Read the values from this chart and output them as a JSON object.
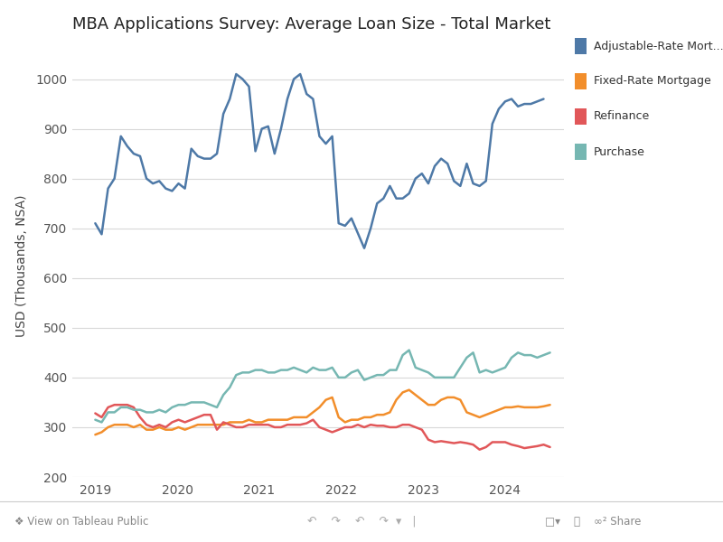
{
  "title": "MBA Applications Survey: Average Loan Size - Total Market",
  "ylabel": "USD (Thousands, NSA)",
  "background_color": "#ffffff",
  "plot_bg_color": "#ffffff",
  "grid_color": "#d8d8d8",
  "ylim": [
    200,
    1050
  ],
  "yticks": [
    200,
    300,
    400,
    500,
    600,
    700,
    800,
    900,
    1000
  ],
  "xtick_years": [
    2019,
    2020,
    2021,
    2022,
    2023,
    2024
  ],
  "xlim_start": 2018.72,
  "xlim_end": 2024.72,
  "n_points": 72,
  "start_year": 2019.0,
  "end_year": 2024.55,
  "series": [
    {
      "label": "Adjustable-Rate Mort...",
      "color": "#4e79a7",
      "linewidth": 1.8,
      "y": [
        710,
        688,
        780,
        800,
        885,
        865,
        850,
        845,
        800,
        790,
        795,
        780,
        775,
        790,
        780,
        860,
        845,
        840,
        840,
        850,
        930,
        960,
        1010,
        1000,
        985,
        855,
        900,
        905,
        850,
        900,
        960,
        1000,
        1010,
        970,
        960,
        885,
        870,
        885,
        710,
        705,
        720,
        690,
        660,
        700,
        750,
        760,
        785,
        760,
        760,
        770,
        800,
        810,
        790,
        825,
        840,
        830,
        795,
        785,
        830,
        790,
        785,
        795,
        910,
        940,
        955,
        960,
        945,
        950,
        950,
        955,
        960
      ]
    },
    {
      "label": "Fixed-Rate Mortgage",
      "color": "#f28e2b",
      "linewidth": 1.8,
      "y": [
        285,
        290,
        300,
        305,
        305,
        305,
        300,
        305,
        295,
        295,
        300,
        295,
        295,
        300,
        295,
        300,
        305,
        305,
        305,
        305,
        305,
        310,
        310,
        310,
        315,
        310,
        310,
        315,
        315,
        315,
        315,
        320,
        320,
        320,
        330,
        340,
        355,
        360,
        320,
        310,
        315,
        315,
        320,
        320,
        325,
        325,
        330,
        355,
        370,
        375,
        365,
        355,
        345,
        345,
        355,
        360,
        360,
        355,
        330,
        325,
        320,
        325,
        330,
        335,
        340,
        340,
        342,
        340,
        340,
        340,
        342,
        345
      ]
    },
    {
      "label": "Refinance",
      "color": "#e15759",
      "linewidth": 1.8,
      "y": [
        328,
        320,
        340,
        345,
        345,
        345,
        340,
        320,
        305,
        300,
        305,
        300,
        310,
        315,
        310,
        315,
        320,
        325,
        325,
        295,
        310,
        305,
        300,
        300,
        305,
        305,
        305,
        305,
        300,
        300,
        305,
        305,
        305,
        308,
        315,
        300,
        295,
        290,
        295,
        300,
        300,
        305,
        300,
        305,
        303,
        303,
        300,
        300,
        305,
        305,
        300,
        295,
        275,
        270,
        272,
        270,
        268,
        270,
        268,
        265,
        255,
        260,
        270,
        270,
        270,
        265,
        262,
        258,
        260,
        262,
        265,
        260
      ]
    },
    {
      "label": "Purchase",
      "color": "#76b7b2",
      "linewidth": 1.8,
      "y": [
        315,
        310,
        330,
        330,
        340,
        340,
        335,
        335,
        330,
        330,
        335,
        330,
        340,
        345,
        345,
        350,
        350,
        350,
        345,
        340,
        365,
        380,
        405,
        410,
        410,
        415,
        415,
        410,
        410,
        415,
        415,
        420,
        415,
        410,
        420,
        415,
        415,
        420,
        400,
        400,
        410,
        415,
        395,
        400,
        405,
        405,
        415,
        415,
        445,
        455,
        420,
        415,
        410,
        400,
        400,
        400,
        400,
        420,
        440,
        450,
        410,
        415,
        410,
        415,
        420,
        440,
        450,
        445,
        445,
        440,
        445,
        450
      ]
    }
  ],
  "tableau_toolbar": "❖ View on Tableau Public",
  "toolbar_right": "↶   ↷   ↶   ↷  ▾  |   ⤓▾   □   ∞ Share"
}
